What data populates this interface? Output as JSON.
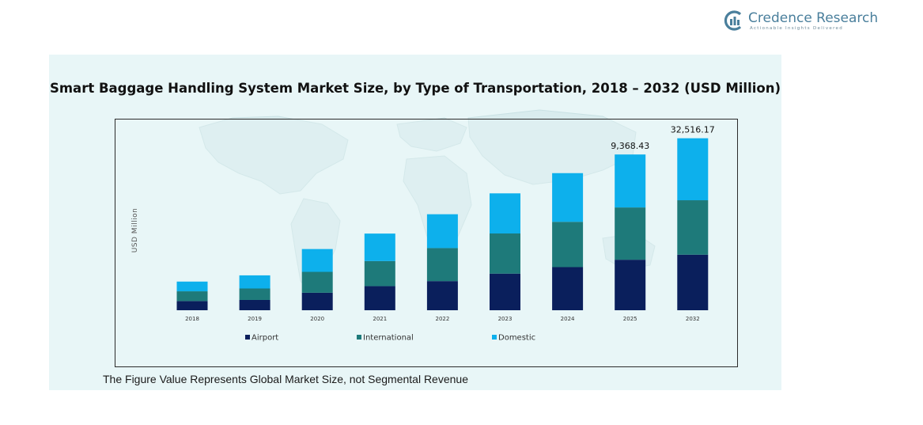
{
  "brand": {
    "name": "Credence Research",
    "tagline": "Actionable Insights Delivered",
    "colors": {
      "primary": "#4a7f9c"
    }
  },
  "chart_data": {
    "type": "bar",
    "stacked": true,
    "title": "Smart Baggage Handling System Market Size, by Type of Transportation, 2018 – 2032 (USD Million)",
    "xlabel": "",
    "ylabel": "USD Million",
    "categories": [
      "2018",
      "2019",
      "2020",
      "2021",
      "2022",
      "2023",
      "2024",
      "2025",
      "2032"
    ],
    "series": [
      {
        "name": "Airport",
        "color": "#0a1f5c",
        "values": [
          950,
          1060,
          1800,
          2480,
          3000,
          3770,
          4440,
          5200,
          5720
        ]
      },
      {
        "name": "International",
        "color": "#1e7a7a",
        "values": [
          1000,
          1180,
          2150,
          2580,
          3400,
          4130,
          4660,
          5380,
          5600
        ]
      },
      {
        "name": "Domestic",
        "color": "#0db0ec",
        "values": [
          1000,
          1350,
          2350,
          2830,
          3480,
          4130,
          5010,
          5450,
          6380
        ]
      }
    ],
    "data_labels": [
      {
        "category": "2025",
        "text": "9,368.43"
      },
      {
        "category": "2032",
        "text": "32,516.17"
      }
    ],
    "legend": {
      "position": "bottom"
    },
    "grid": false,
    "background": "world-map"
  },
  "footnote": "The Figure Value Represents Global Market Size, not Segmental Revenue"
}
